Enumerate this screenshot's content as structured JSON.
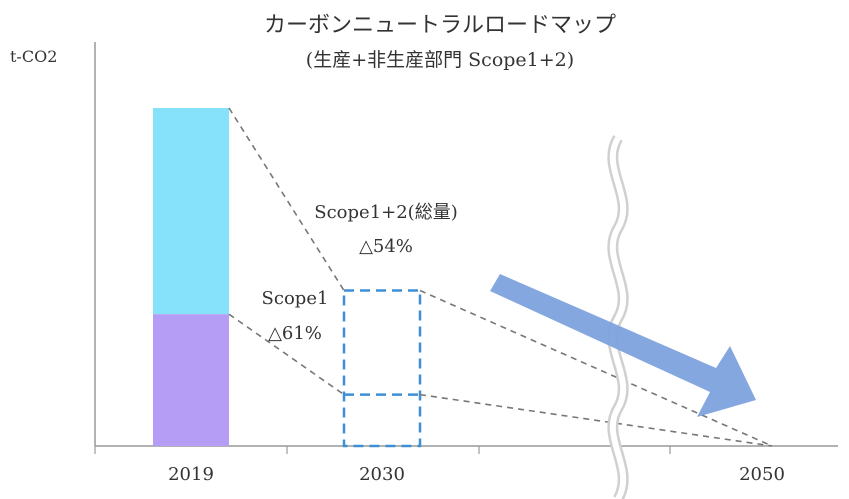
{
  "chart_data": {
    "type": "bar",
    "title": "カーボンニュートラルロードマップ",
    "subtitle": "(生産+非生産部門 Scope1+2)",
    "ylabel": "t-CO2",
    "xlabel": "",
    "categories": [
      "2019",
      "2030",
      "2050"
    ],
    "ylim": [
      0,
      100
    ],
    "series": [
      {
        "name": "Scope1",
        "values": [
          39,
          15.2,
          0
        ]
      },
      {
        "name": "Scope1+2",
        "values": [
          100,
          46,
          0
        ]
      }
    ],
    "annotations": [
      {
        "label": "Scope1+2(総量)",
        "value": "△54%"
      },
      {
        "label": "Scope1",
        "value": "△61%"
      }
    ],
    "colors": {
      "scope1": "#b59cf5",
      "scope2": "#86e2fb",
      "target_box": "#3d8fd6",
      "trend_line": "#777777",
      "arrow": "#7ea2de",
      "axis": "#999999"
    },
    "grid": false,
    "legend": "none"
  }
}
